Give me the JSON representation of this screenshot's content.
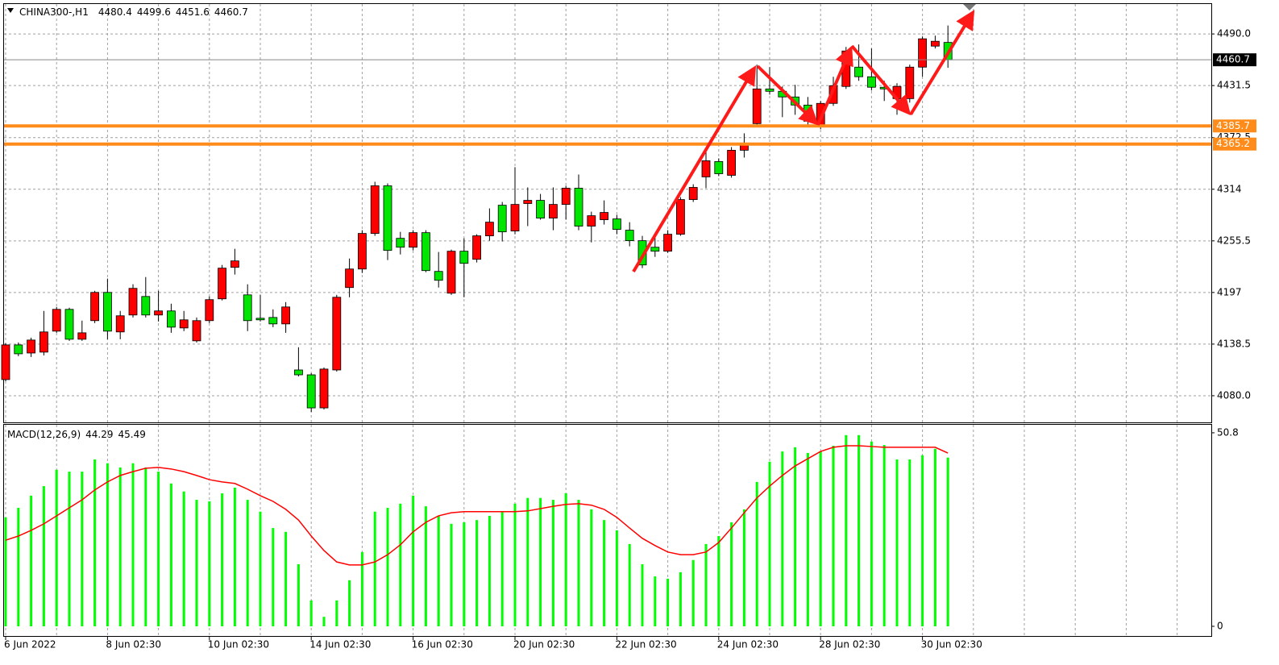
{
  "chart_data": [
    {
      "type": "candlestick",
      "title": "CHINA300-,H1",
      "categories": [
        "6 Jun 2022",
        null,
        null,
        null,
        null,
        null,
        null,
        null,
        "8 Jun 02:30",
        null,
        null,
        null,
        null,
        null,
        null,
        null,
        "10 Jun 02:30",
        null,
        null,
        null,
        null,
        null,
        null,
        null,
        "14 Jun 02:30",
        null,
        null,
        null,
        null,
        null,
        null,
        null,
        "16 Jun 02:30",
        null,
        null,
        null,
        null,
        null,
        null,
        null,
        "20 Jun 02:30",
        null,
        null,
        null,
        null,
        null,
        null,
        null,
        "22 Jun 02:30",
        null,
        null,
        null,
        null,
        null,
        null,
        null,
        "24 Jun 02:30",
        null,
        null,
        null,
        null,
        null,
        null,
        null,
        "28 Jun 02:30",
        null,
        null,
        null,
        null,
        null,
        null,
        null,
        "30 Jun 02:30",
        null,
        null
      ],
      "open": [
        4098.3,
        4137.6,
        4128.4,
        4129.4,
        4153.2,
        4177.9,
        4144.0,
        4165.1,
        4197.1,
        4152.3,
        4171.5,
        4192.5,
        4171.5,
        4176.1,
        4156.8,
        4142.2,
        4165.1,
        4189.8,
        4225.5,
        4194.3,
        4167.8,
        4168.7,
        4161.4,
        4109.2,
        4103.7,
        4066.2,
        4109.2,
        4202.6,
        4223.6,
        4263.9,
        4317.9,
        4258.4,
        4248.3,
        4264.8,
        4220.9,
        4196.2,
        4243.8,
        4234.6,
        4261.2,
        4295.9,
        4266.7,
        4297.8,
        4301.4,
        4281.3,
        4296.8,
        4315.2,
        4272.2,
        4279.5,
        4280.4,
        4267.6,
        4255.7,
        4248.3,
        4243.8,
        4263.0,
        4302.3,
        4328.0,
        4345.4,
        4329.8,
        4358.2,
        4388.4,
        4427.7,
        4425.0,
        4418.6,
        4409.4,
        4386.5,
        4411.3,
        4430.5,
        4452.4,
        4441.5,
        4429.6,
        4416.7,
        4416.7,
        4452.4,
        4476.2,
        4480.4
      ],
      "high": [
        4139.4,
        4140.4,
        4145.8,
        4176.1,
        4180.6,
        4179.7,
        4165.1,
        4198.9,
        4212.7,
        4176.1,
        4206.3,
        4214.5,
        4198.9,
        4184.3,
        4176.1,
        4168.7,
        4192.5,
        4228.2,
        4246.5,
        4206.3,
        4194.3,
        4177.9,
        4186.1,
        4134.9,
        4105.6,
        4112.0,
        4194.3,
        4235.5,
        4267.6,
        4322.5,
        4320.6,
        4265.7,
        4267.6,
        4267.6,
        4242.9,
        4245.6,
        4258.4,
        4263.0,
        4292.3,
        4299.6,
        4339.0,
        4316.1,
        4308.7,
        4316.1,
        4317.9,
        4330.7,
        4288.6,
        4301.4,
        4285.0,
        4276.7,
        4261.2,
        4261.2,
        4267.6,
        4305.1,
        4319.7,
        4359.1,
        4349.0,
        4361.8,
        4377.4,
        4455.2,
        4452.4,
        4430.5,
        4432.3,
        4418.6,
        4414.0,
        4441.5,
        4475.3,
        4478.1,
        4473.5,
        4436.9,
        4434.1,
        4455.2,
        4487.2,
        4488.1,
        4499.6
      ],
      "low": [
        4096.4,
        4124.8,
        4123.9,
        4125.7,
        4151.3,
        4142.2,
        4142.2,
        4162.3,
        4144.0,
        4144.0,
        4168.7,
        4168.7,
        4164.1,
        4151.3,
        4153.2,
        4140.4,
        4162.3,
        4188.0,
        4217.3,
        4153.2,
        4164.1,
        4157.7,
        4151.3,
        4101.9,
        4061.6,
        4064.4,
        4107.4,
        4191.6,
        4219.1,
        4261.2,
        4233.7,
        4240.1,
        4244.7,
        4220.0,
        4202.6,
        4194.3,
        4191.6,
        4231.0,
        4255.7,
        4254.8,
        4263.0,
        4272.2,
        4279.5,
        4267.6,
        4279.5,
        4267.6,
        4253.8,
        4274.0,
        4263.0,
        4249.3,
        4224.6,
        4237.4,
        4241.9,
        4261.2,
        4299.6,
        4315.2,
        4328.9,
        4327.1,
        4349.9,
        4386.5,
        4421.3,
        4395.7,
        4398.4,
        4386.5,
        4382.0,
        4408.5,
        4427.7,
        4436.9,
        4425.9,
        4414.0,
        4398.4,
        4412.2,
        4441.5,
        4473.5,
        4451.6
      ],
      "close": [
        4137.6,
        4127.5,
        4143.1,
        4152.3,
        4177.9,
        4144.0,
        4151.3,
        4197.1,
        4153.2,
        4170.6,
        4201.7,
        4171.5,
        4176.1,
        4157.7,
        4166.0,
        4165.1,
        4188.9,
        4224.6,
        4232.8,
        4165.1,
        4166.0,
        4161.4,
        4180.6,
        4103.7,
        4066.2,
        4110.2,
        4191.6,
        4223.6,
        4263.9,
        4317.9,
        4244.7,
        4248.3,
        4264.8,
        4221.8,
        4210.8,
        4243.8,
        4230.0,
        4261.2,
        4276.7,
        4265.7,
        4296.8,
        4301.4,
        4281.3,
        4296.8,
        4315.2,
        4272.2,
        4284.0,
        4287.7,
        4268.5,
        4255.7,
        4228.2,
        4243.8,
        4263.0,
        4302.3,
        4316.1,
        4346.3,
        4331.6,
        4358.2,
        4365.5,
        4427.7,
        4425.0,
        4418.6,
        4409.4,
        4391.1,
        4411.3,
        4431.4,
        4470.7,
        4441.5,
        4429.6,
        4427.7,
        4430.5,
        4452.4,
        4484.5,
        4481.7,
        4460.7
      ],
      "up_color": "#ff0000",
      "down_color": "#00e600",
      "ylim": [
        4049.8,
        4523.9
      ],
      "yticks": [
        {
          "value": 4080,
          "label": "4080.0"
        },
        4138.5,
        4197,
        4255.5,
        4314,
        4372.5,
        4431.5,
        {
          "value": 4490,
          "label": "4490.0"
        }
      ],
      "grid": true,
      "hlines": [
        {
          "value": 4385.7,
          "color": "#ff8c1a"
        },
        {
          "value": 4365.2,
          "color": "#ff8c1a"
        }
      ]
    },
    {
      "type": "bar",
      "title": "MACD(12,26,9)",
      "series": [
        {
          "type": "bar",
          "color": "#00ff00",
          "values": [
            28.6,
            31.1,
            34.3,
            36.8,
            41.1,
            40.6,
            40.6,
            43.8,
            42.8,
            41.7,
            42.8,
            41.7,
            40.6,
            37.5,
            35.4,
            33.2,
            32.8,
            34.9,
            36.4,
            33.2,
            30.1,
            25.8,
            24.8,
            16.3,
            6.8,
            2.5,
            6.8,
            12.1,
            19.5,
            30.1,
            31.1,
            32.2,
            34.3,
            31.5,
            29.0,
            26.9,
            27.3,
            27.9,
            29.0,
            30.1,
            32.2,
            33.7,
            33.7,
            33.2,
            34.9,
            33.2,
            30.7,
            27.9,
            25.2,
            21.6,
            16.3,
            13.1,
            12.5,
            14.2,
            17.4,
            21.6,
            23.7,
            27.3,
            30.7,
            37.9,
            43.2,
            45.9,
            47.0,
            45.5,
            45.9,
            47.4,
            50.2,
            50.2,
            48.5,
            47.6,
            43.8,
            43.8,
            44.9,
            46.6,
            44.29
          ]
        },
        {
          "type": "line",
          "color": "#ff0000",
          "values": [
            22.6,
            23.7,
            25.2,
            26.9,
            29.0,
            31.1,
            33.2,
            35.8,
            37.9,
            39.6,
            40.6,
            41.5,
            41.7,
            41.3,
            40.6,
            39.6,
            38.5,
            37.9,
            37.5,
            36.0,
            34.3,
            32.8,
            30.7,
            27.9,
            23.7,
            19.9,
            16.9,
            16.1,
            16.1,
            16.9,
            18.8,
            21.4,
            24.8,
            27.3,
            29.0,
            29.8,
            30.1,
            30.1,
            30.1,
            30.1,
            30.1,
            30.3,
            30.9,
            31.5,
            32.0,
            32.2,
            31.8,
            30.7,
            28.6,
            25.8,
            23.1,
            21.2,
            19.5,
            18.8,
            18.8,
            19.5,
            22.0,
            25.8,
            29.8,
            33.7,
            36.8,
            39.6,
            42.1,
            44.0,
            45.9,
            47.0,
            47.4,
            47.4,
            47.2,
            47.0,
            47.0,
            47.0,
            47.0,
            47.0,
            45.49
          ]
        }
      ],
      "ylim": [
        -2.75,
        52.9
      ],
      "yticks": [
        0,
        50.8
      ]
    }
  ]
}
